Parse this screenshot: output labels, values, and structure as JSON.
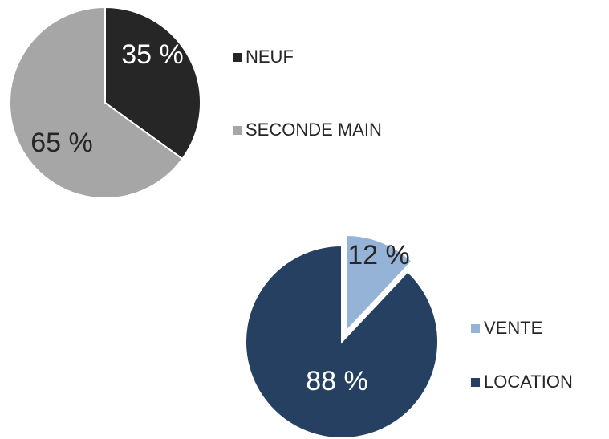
{
  "chart_data": [
    {
      "type": "pie",
      "categories": [
        "NEUF",
        "SECONDE MAIN"
      ],
      "values": [
        35,
        65
      ],
      "value_labels": [
        "35 %",
        "65 %"
      ],
      "colors": [
        "#262626",
        "#a6a6a6"
      ]
    },
    {
      "type": "pie",
      "categories": [
        "VENTE",
        "LOCATION"
      ],
      "values": [
        12,
        88
      ],
      "value_labels": [
        "12 %",
        "88 %"
      ],
      "colors": [
        "#95b3d7",
        "#254061"
      ]
    }
  ]
}
